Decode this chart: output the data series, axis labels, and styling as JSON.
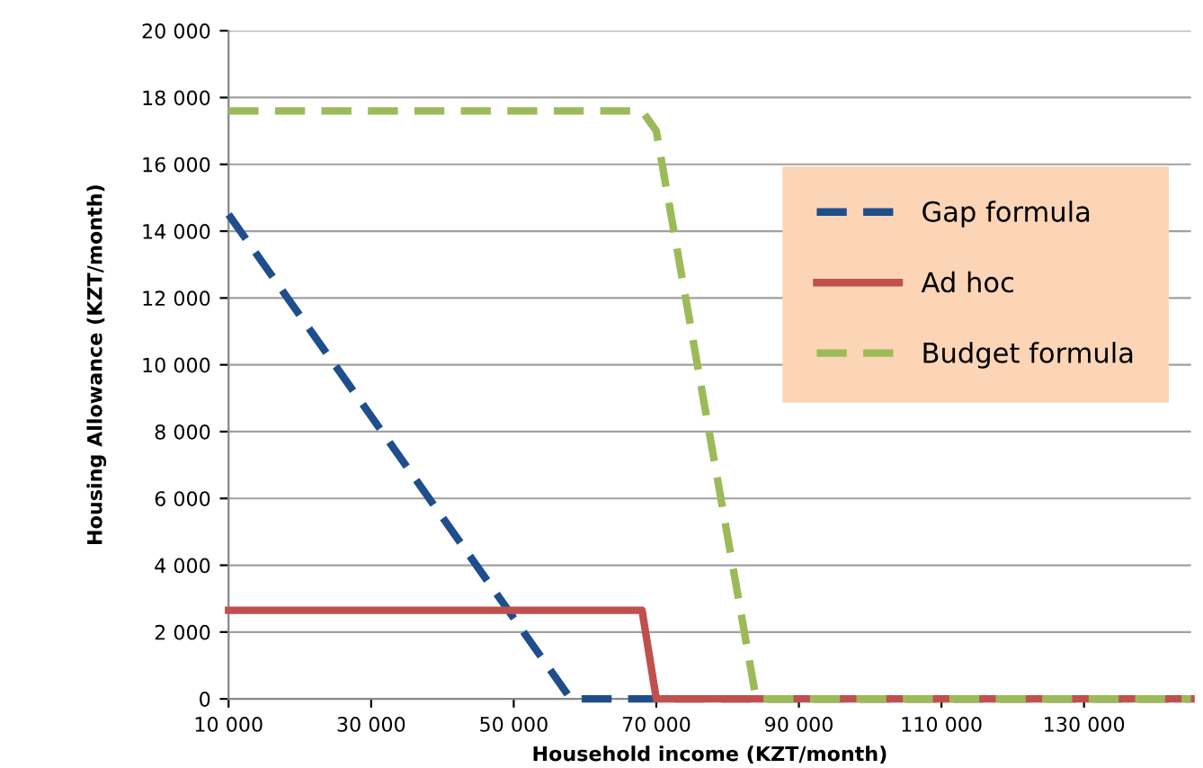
{
  "chart_data": {
    "type": "line",
    "xlabel": "Household income (KZT/month)",
    "ylabel": "Housing Allowance (KZT/month)",
    "xlim": [
      10000,
      145000
    ],
    "ylim": [
      0,
      20000
    ],
    "xticks": [
      {
        "value": 10000,
        "label": "10 000"
      },
      {
        "value": 30000,
        "label": "30 000"
      },
      {
        "value": 50000,
        "label": "50 000"
      },
      {
        "value": 70000,
        "label": "70 000"
      },
      {
        "value": 90000,
        "label": "90 000"
      },
      {
        "value": 110000,
        "label": "110 000"
      },
      {
        "value": 130000,
        "label": "130 000"
      }
    ],
    "yticks": [
      {
        "value": 0,
        "label": "0"
      },
      {
        "value": 2000,
        "label": "2 000"
      },
      {
        "value": 4000,
        "label": "4 000"
      },
      {
        "value": 6000,
        "label": "6 000"
      },
      {
        "value": 8000,
        "label": "8 000"
      },
      {
        "value": 10000,
        "label": "10 000"
      },
      {
        "value": 12000,
        "label": "12 000"
      },
      {
        "value": 14000,
        "label": "14 000"
      },
      {
        "value": 16000,
        "label": "16 000"
      },
      {
        "value": 18000,
        "label": "18 000"
      },
      {
        "value": 20000,
        "label": "20 000"
      }
    ],
    "grid": "y",
    "legend": "right",
    "marker": "none",
    "series": [
      {
        "name": "Gap formula",
        "color": "#1f4e8c",
        "line_style": "dashed",
        "x": [
          10000,
          58000,
          145000
        ],
        "values": [
          14500,
          0,
          0
        ]
      },
      {
        "name": "Ad hoc",
        "color": "#c0504d",
        "line_style": "solid",
        "x": [
          10000,
          68000,
          70000,
          145000
        ],
        "values": [
          2650,
          2650,
          0,
          0
        ]
      },
      {
        "name": "Budget formula",
        "color": "#9bbb59",
        "line_style": "dashed",
        "x": [
          10000,
          68000,
          70000,
          84000,
          145000
        ],
        "values": [
          17600,
          17600,
          17000,
          0,
          0
        ]
      }
    ]
  }
}
